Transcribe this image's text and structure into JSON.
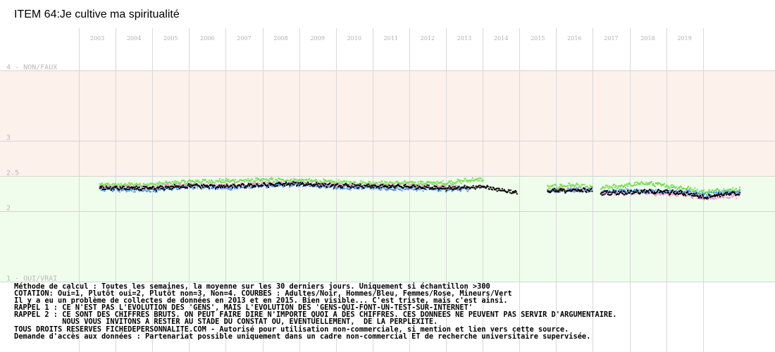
{
  "title": "ITEM 64:Je cultive ma spiritualité",
  "chart_data": {
    "type": "scatter",
    "x_axis": {
      "type": "year",
      "ticks": [
        "2003",
        "2004",
        "2005",
        "2006",
        "2007",
        "2008",
        "2009",
        "2010",
        "2011",
        "2012",
        "2013",
        "2014",
        "2015",
        "2016",
        "2017",
        "2018",
        "2019"
      ]
    },
    "y_axis": {
      "ylim": [
        1,
        4
      ],
      "ticks": [
        {
          "value": 4,
          "label": "4 - NON/FAUX"
        },
        {
          "value": 3,
          "label": "3"
        },
        {
          "value": 2.5,
          "label": "2.5"
        },
        {
          "value": 2,
          "label": "2"
        },
        {
          "value": 1,
          "label": "1 - OUI/VRAI"
        }
      ]
    },
    "bands": [
      {
        "from": 2.5,
        "to": 4,
        "color": "#fdf1ec"
      },
      {
        "from": 1,
        "to": 2.5,
        "color": "#f0fdec"
      }
    ],
    "grid": true,
    "series": [
      {
        "name": "Adultes",
        "color": "#000000",
        "segments": [
          {
            "from": 2002.55,
            "to": 2013.92,
            "base": [
              [
                2002.55,
                2.33
              ],
              [
                2004,
                2.32
              ],
              [
                2005,
                2.36
              ],
              [
                2006,
                2.35
              ],
              [
                2007,
                2.37
              ],
              [
                2008,
                2.39
              ],
              [
                2009,
                2.36
              ],
              [
                2010,
                2.35
              ],
              [
                2011,
                2.35
              ],
              [
                2012,
                2.33
              ],
              [
                2012.6,
                2.33
              ],
              [
                2013,
                2.35
              ],
              [
                2013.5,
                2.3
              ],
              [
                2013.92,
                2.26
              ]
            ]
          },
          {
            "from": 2014.75,
            "to": 2015.98,
            "base": [
              [
                2014.75,
                2.28
              ],
              [
                2015.4,
                2.3
              ],
              [
                2015.98,
                2.29
              ]
            ]
          },
          {
            "from": 2016.2,
            "to": 2020.0,
            "base": [
              [
                2016.2,
                2.26
              ],
              [
                2017,
                2.27
              ],
              [
                2017.5,
                2.28
              ],
              [
                2018,
                2.27
              ],
              [
                2018.6,
                2.25
              ],
              [
                2019,
                2.2
              ],
              [
                2019.5,
                2.24
              ],
              [
                2020.0,
                2.25
              ]
            ]
          }
        ]
      },
      {
        "name": "Hommes",
        "color": "#5599ee",
        "segments": [
          {
            "from": 2002.55,
            "to": 2012.6,
            "base": [
              [
                2002.55,
                2.31
              ],
              [
                2004,
                2.3
              ],
              [
                2005,
                2.35
              ],
              [
                2006,
                2.33
              ],
              [
                2007,
                2.36
              ],
              [
                2008,
                2.38
              ],
              [
                2009,
                2.34
              ],
              [
                2010,
                2.33
              ],
              [
                2011,
                2.32
              ],
              [
                2012,
                2.31
              ],
              [
                2012.6,
                2.31
              ]
            ]
          },
          {
            "from": 2014.75,
            "to": 2015.98,
            "base": [
              [
                2014.75,
                2.28
              ],
              [
                2015.4,
                2.3
              ],
              [
                2015.98,
                2.3
              ]
            ]
          },
          {
            "from": 2016.2,
            "to": 2020.0,
            "base": [
              [
                2016.2,
                2.27
              ],
              [
                2017,
                2.29
              ],
              [
                2018,
                2.28
              ],
              [
                2018.6,
                2.27
              ],
              [
                2019,
                2.23
              ],
              [
                2019.5,
                2.26
              ],
              [
                2020.0,
                2.27
              ]
            ]
          }
        ]
      },
      {
        "name": "Femmes",
        "color": "#ee99cc",
        "segments": [
          {
            "from": 2002.55,
            "to": 2012.6,
            "base": [
              [
                2002.55,
                2.34
              ],
              [
                2004,
                2.34
              ],
              [
                2005,
                2.37
              ],
              [
                2006,
                2.36
              ],
              [
                2007,
                2.39
              ],
              [
                2008,
                2.4
              ],
              [
                2009,
                2.37
              ],
              [
                2010,
                2.36
              ],
              [
                2011,
                2.36
              ],
              [
                2012,
                2.34
              ],
              [
                2012.6,
                2.34
              ]
            ]
          },
          {
            "from": 2014.75,
            "to": 2015.98,
            "base": [
              [
                2014.75,
                2.29
              ],
              [
                2015.4,
                2.31
              ],
              [
                2015.98,
                2.3
              ]
            ]
          },
          {
            "from": 2016.2,
            "to": 2020.0,
            "base": [
              [
                2016.2,
                2.25
              ],
              [
                2017,
                2.26
              ],
              [
                2018,
                2.25
              ],
              [
                2018.6,
                2.23
              ],
              [
                2019,
                2.18
              ],
              [
                2019.5,
                2.21
              ],
              [
                2020.0,
                2.22
              ]
            ]
          }
        ]
      },
      {
        "name": "Mineurs",
        "color": "#77dd55",
        "segments": [
          {
            "from": 2002.55,
            "to": 2013.0,
            "base": [
              [
                2002.55,
                2.37
              ],
              [
                2004,
                2.38
              ],
              [
                2005,
                2.42
              ],
              [
                2006,
                2.43
              ],
              [
                2007,
                2.44
              ],
              [
                2008,
                2.44
              ],
              [
                2009,
                2.41
              ],
              [
                2010,
                2.4
              ],
              [
                2011,
                2.4
              ],
              [
                2012,
                2.4
              ],
              [
                2012.6,
                2.44
              ],
              [
                2013.0,
                2.45
              ]
            ]
          },
          {
            "from": 2014.75,
            "to": 2015.98,
            "base": [
              [
                2014.75,
                2.34
              ],
              [
                2015.4,
                2.37
              ],
              [
                2015.98,
                2.33
              ]
            ]
          },
          {
            "from": 2016.2,
            "to": 2020.0,
            "base": [
              [
                2016.2,
                2.33
              ],
              [
                2017,
                2.37
              ],
              [
                2017.4,
                2.4
              ],
              [
                2018,
                2.36
              ],
              [
                2018.6,
                2.32
              ],
              [
                2019,
                2.27
              ],
              [
                2019.5,
                2.3
              ],
              [
                2020.0,
                2.31
              ]
            ]
          }
        ]
      }
    ]
  },
  "notes": [
    "Méthode de calcul : Toutes les semaines, la moyenne sur les 30 derniers jours. Uniquement si échantillon >300",
    "COTATION: Oui=1, Plutôt oui=2, Plutôt non=3, Non=4. COURBES : Adultes/Noir, Hommes/Bleu, Femmes/Rose, Mineurs/Vert",
    "Il y a eu un problème de collectes de données en 2013 et en 2015. Bien visible... C'est triste, mais c'est ainsi.",
    "RAPPEL 1 : CE N'EST PAS L'EVOLUTION DES 'GENS', MAIS L'EVOLUTION DES 'GENS-QUI-FONT-UN-TEST-SUR-INTERNET'",
    "RAPPEL 2 : CE SONT DES CHIFFRES BRUTS. ON PEUT FAIRE DIRE N'IMPORTE QUOI A DES CHIFFRES. CES DONNEES NE PEUVENT PAS SERVIR D'ARGUMENTAIRE.",
    "           NOUS VOUS INVITONS A RESTER AU STADE DU CONSTAT OU, EVENTUELLEMENT,  DE LA PERPLEXITE.",
    "TOUS DROITS RESERVES FICHEDEPERSONNALITE.COM - Autorisé pour utilisation non-commerciale, si mention et lien vers cette source.",
    "Demande d'accès aux données : Partenariat possible uniquement dans un cadre non-commercial ET de recherche universitaire supervisée."
  ]
}
